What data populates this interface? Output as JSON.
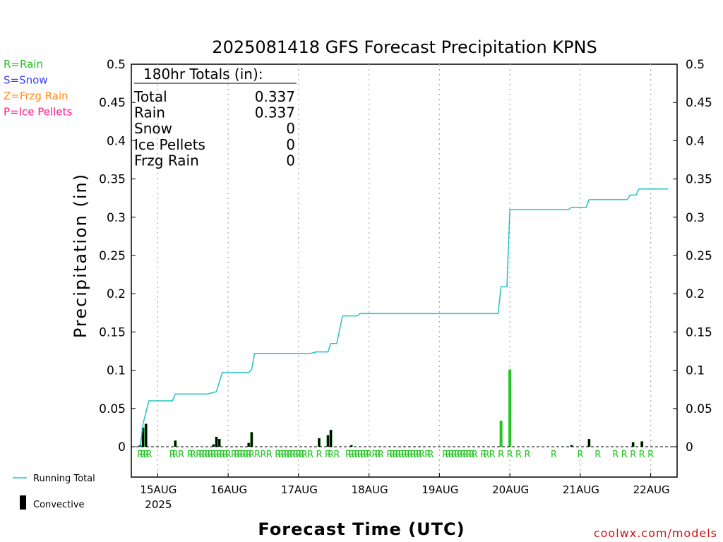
{
  "chart_data": {
    "type": "bar",
    "title": "2025081418 GFS Forecast Precipitation KPNS",
    "xlabel": "Forecast Time (UTC)",
    "ylabel": "Precipitation (in)",
    "ylim": [
      0,
      0.5
    ],
    "yticks": [
      "0",
      "0.05",
      "0.1",
      "0.15",
      "0.2",
      "0.25",
      "0.3",
      "0.35",
      "0.4",
      "0.45",
      "0.5"
    ],
    "xlim": [
      -3,
      183
    ],
    "xticks": [
      {
        "t": 6,
        "label": "15AUG"
      },
      {
        "t": 30,
        "label": "16AUG"
      },
      {
        "t": 54,
        "label": "17AUG"
      },
      {
        "t": 78,
        "label": "18AUG"
      },
      {
        "t": 102,
        "label": "19AUG"
      },
      {
        "t": 126,
        "label": "20AUG"
      },
      {
        "t": 150,
        "label": "21AUG"
      },
      {
        "t": 174,
        "label": "22AUG"
      }
    ],
    "year_label": "2025",
    "grid": "vertical dotted at day boundaries",
    "totals": {
      "heading": "180hr Totals (in):",
      "rows": [
        {
          "label": "Total",
          "value": "0.337"
        },
        {
          "label": "Rain",
          "value": "0.337"
        },
        {
          "label": "Snow",
          "value": "0"
        },
        {
          "label": "Ice Pellets",
          "value": "0"
        },
        {
          "label": "Frzg Rain",
          "value": "0"
        }
      ]
    },
    "ptype_legend": [
      {
        "text": "R=Rain",
        "color": "#22c322"
      },
      {
        "text": "S=Snow",
        "color": "#3a3aff"
      },
      {
        "text": "Z=Frzg Rain",
        "color": "#ff8c1a"
      },
      {
        "text": "P=Ice Pellets",
        "color": "#ff1a8c"
      }
    ],
    "series_legend": [
      {
        "name": "Running Total",
        "color": "#22c3c3"
      },
      {
        "name": "Convective",
        "color": "#000000"
      }
    ],
    "bars": [
      {
        "t": 0,
        "total": 0.002,
        "conv": 0.002
      },
      {
        "t": 1,
        "total": 0.025,
        "conv": 0.025
      },
      {
        "t": 2,
        "total": 0.03,
        "conv": 0.03
      },
      {
        "t": 12,
        "total": 0.008,
        "conv": 0.008
      },
      {
        "t": 25,
        "total": 0.003,
        "conv": 0.003
      },
      {
        "t": 26,
        "total": 0.013,
        "conv": 0.013
      },
      {
        "t": 27,
        "total": 0.01,
        "conv": 0.01
      },
      {
        "t": 37,
        "total": 0.005,
        "conv": 0.005
      },
      {
        "t": 38,
        "total": 0.019,
        "conv": 0.019
      },
      {
        "t": 61,
        "total": 0.011,
        "conv": 0.011
      },
      {
        "t": 64,
        "total": 0.015,
        "conv": 0.015
      },
      {
        "t": 65,
        "total": 0.022,
        "conv": 0.022
      },
      {
        "t": 72,
        "total": 0.002,
        "conv": 0.002
      },
      {
        "t": 123,
        "total": 0.034,
        "conv": 0.0
      },
      {
        "t": 126,
        "total": 0.101,
        "conv": 0.0
      },
      {
        "t": 147,
        "total": 0.002,
        "conv": 0.002
      },
      {
        "t": 153,
        "total": 0.01,
        "conv": 0.01
      },
      {
        "t": 168,
        "total": 0.006,
        "conv": 0.006
      },
      {
        "t": 171,
        "total": 0.007,
        "conv": 0.007
      }
    ],
    "running_total": [
      [
        0,
        0
      ],
      [
        1,
        0.03
      ],
      [
        3,
        0.06
      ],
      [
        11,
        0.06
      ],
      [
        12,
        0.069
      ],
      [
        23,
        0.069
      ],
      [
        24,
        0.07
      ],
      [
        26,
        0.072
      ],
      [
        28,
        0.097
      ],
      [
        37,
        0.097
      ],
      [
        38,
        0.101
      ],
      [
        39,
        0.122
      ],
      [
        58,
        0.122
      ],
      [
        60,
        0.124
      ],
      [
        64,
        0.124
      ],
      [
        65,
        0.135
      ],
      [
        67,
        0.135
      ],
      [
        69,
        0.171
      ],
      [
        74,
        0.171
      ],
      [
        75,
        0.174
      ],
      [
        115,
        0.174
      ],
      [
        122,
        0.174
      ],
      [
        123,
        0.209
      ],
      [
        125,
        0.209
      ],
      [
        126,
        0.31
      ],
      [
        146,
        0.31
      ],
      [
        147,
        0.313
      ],
      [
        152,
        0.313
      ],
      [
        153,
        0.323
      ],
      [
        166,
        0.323
      ],
      [
        167,
        0.329
      ],
      [
        169,
        0.329
      ],
      [
        170,
        0.337
      ],
      [
        180,
        0.337
      ]
    ],
    "ptype_marks": [
      0,
      1,
      2,
      3,
      11,
      12,
      14,
      17,
      18,
      20,
      21,
      22,
      23,
      24,
      25,
      26,
      27,
      28,
      29,
      30,
      32,
      33,
      34,
      35,
      36,
      37,
      38,
      40,
      42,
      44,
      47,
      48,
      49,
      50,
      51,
      52,
      53,
      54,
      55,
      56,
      58,
      61,
      64,
      65,
      67,
      71,
      72,
      73,
      74,
      75,
      76,
      77,
      78,
      80,
      81,
      82,
      85,
      86,
      87,
      88,
      89,
      90,
      91,
      92,
      93,
      94,
      95,
      96,
      98,
      99,
      104,
      105,
      106,
      107,
      108,
      109,
      110,
      111,
      112,
      113,
      114,
      117,
      118,
      120,
      123,
      126,
      129,
      132,
      141,
      150,
      156,
      162,
      165,
      168,
      171,
      174
    ],
    "ptype_mark_text": "R"
  },
  "credit": "coolwx.com/models"
}
